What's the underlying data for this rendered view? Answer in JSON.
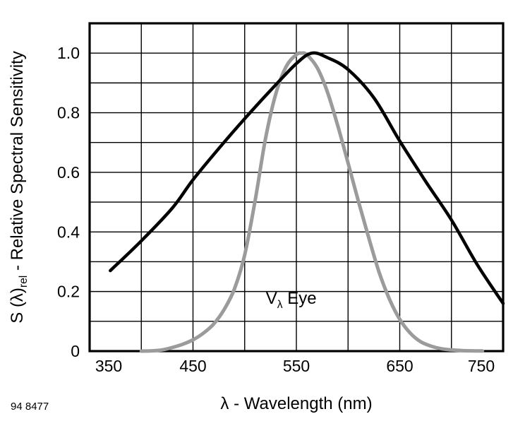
{
  "figure_number": "94 8477",
  "labels": {
    "x_axis": "λ - Wavelength (nm)",
    "y_axis_prefix": "S (λ)",
    "y_axis_sub": "rel",
    "y_axis_suffix": " - Relative Spectral Sensitivity",
    "annotation_prefix": "V",
    "annotation_sub": "λ",
    "annotation_suffix": " Eye"
  },
  "chart_data": {
    "type": "line",
    "title": "",
    "xlabel": "λ - Wavelength (nm)",
    "ylabel": "S(λ)rel - Relative Spectral Sensitivity",
    "xlim": [
      350,
      750
    ],
    "ylim": [
      0,
      1.1
    ],
    "x_grid_step": 50,
    "y_grid_step": 0.1,
    "grid": true,
    "x_ticks": [
      350,
      450,
      550,
      650,
      750
    ],
    "y_tick_labels": [
      "0",
      "0.2",
      "0.4",
      "0.6",
      "0.8",
      "1.0"
    ],
    "annotation": {
      "text": "Vλ Eye",
      "x": 545,
      "y": 0.17
    },
    "series": [
      {
        "name": "vlambda-eye",
        "color": "#9b9b9b",
        "width": 5,
        "points": [
          [
            400,
            0
          ],
          [
            410,
            0.001
          ],
          [
            420,
            0.004
          ],
          [
            430,
            0.012
          ],
          [
            440,
            0.023
          ],
          [
            450,
            0.038
          ],
          [
            460,
            0.06
          ],
          [
            470,
            0.091
          ],
          [
            480,
            0.139
          ],
          [
            490,
            0.208
          ],
          [
            500,
            0.323
          ],
          [
            510,
            0.503
          ],
          [
            520,
            0.71
          ],
          [
            530,
            0.862
          ],
          [
            540,
            0.954
          ],
          [
            550,
            0.995
          ],
          [
            555,
            1.0
          ],
          [
            560,
            0.995
          ],
          [
            570,
            0.952
          ],
          [
            580,
            0.87
          ],
          [
            590,
            0.757
          ],
          [
            600,
            0.631
          ],
          [
            610,
            0.503
          ],
          [
            620,
            0.381
          ],
          [
            630,
            0.265
          ],
          [
            640,
            0.175
          ],
          [
            650,
            0.107
          ],
          [
            660,
            0.061
          ],
          [
            670,
            0.032
          ],
          [
            680,
            0.017
          ],
          [
            690,
            0.008
          ],
          [
            700,
            0.004
          ],
          [
            710,
            0.002
          ],
          [
            720,
            0.001
          ],
          [
            730,
            0.0005
          ]
        ]
      },
      {
        "name": "detector-sensitivity",
        "color": "#000000",
        "width": 4.5,
        "points": [
          [
            370,
            0.27
          ],
          [
            400,
            0.37
          ],
          [
            430,
            0.48
          ],
          [
            450,
            0.575
          ],
          [
            475,
            0.68
          ],
          [
            500,
            0.78
          ],
          [
            525,
            0.875
          ],
          [
            550,
            0.965
          ],
          [
            565,
            1.0
          ],
          [
            580,
            0.985
          ],
          [
            600,
            0.945
          ],
          [
            625,
            0.85
          ],
          [
            650,
            0.705
          ],
          [
            675,
            0.57
          ],
          [
            700,
            0.44
          ],
          [
            725,
            0.29
          ],
          [
            750,
            0.16
          ]
        ]
      }
    ]
  }
}
